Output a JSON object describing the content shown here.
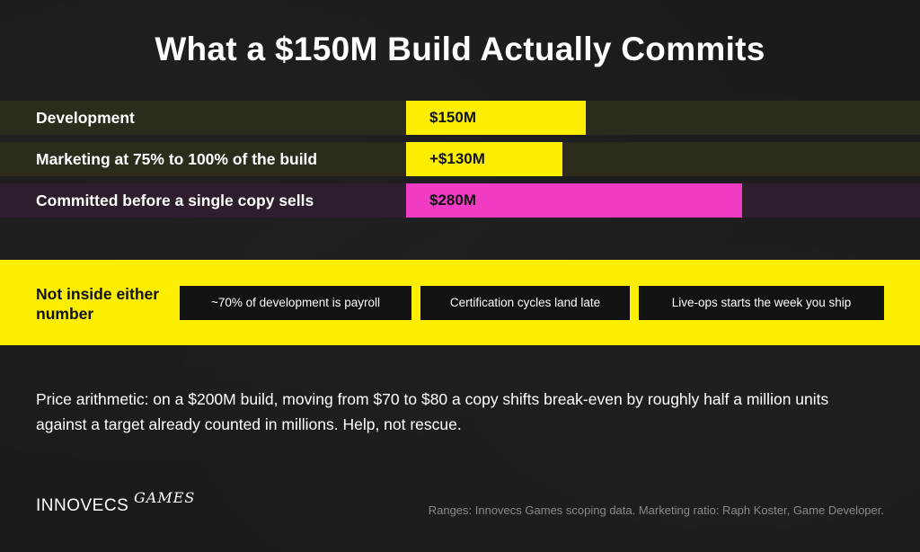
{
  "title": "What a $150M Build Actually Commits",
  "chart_data": {
    "type": "bar",
    "orientation": "horizontal",
    "categories": [
      "Development",
      "Marketing at 75% to 100% of the build",
      "Committed before a single copy sells"
    ],
    "values": [
      150,
      130,
      280
    ],
    "data_labels": [
      "$150M",
      "+$130M",
      "$280M"
    ],
    "colors": [
      "#fbee00",
      "#fbee00",
      "#f03bc2"
    ],
    "xlim": [
      0,
      430
    ],
    "grid": false
  },
  "band": {
    "title": "Not inside either number",
    "chips": [
      "~70% of development is payroll",
      "Certification cycles land late",
      "Live-ops starts the week you ship"
    ]
  },
  "body_text": "Price arithmetic: on a $200M build, moving from $70 to $80 a copy shifts break-even by roughly half a million units against a target already counted in millions. Help, not rescue.",
  "logo": {
    "main": "INNOVECS",
    "script": "GAMES"
  },
  "source": "Ranges: Innovecs Games scoping data. Marketing ratio: Raph Koster, Game Developer."
}
